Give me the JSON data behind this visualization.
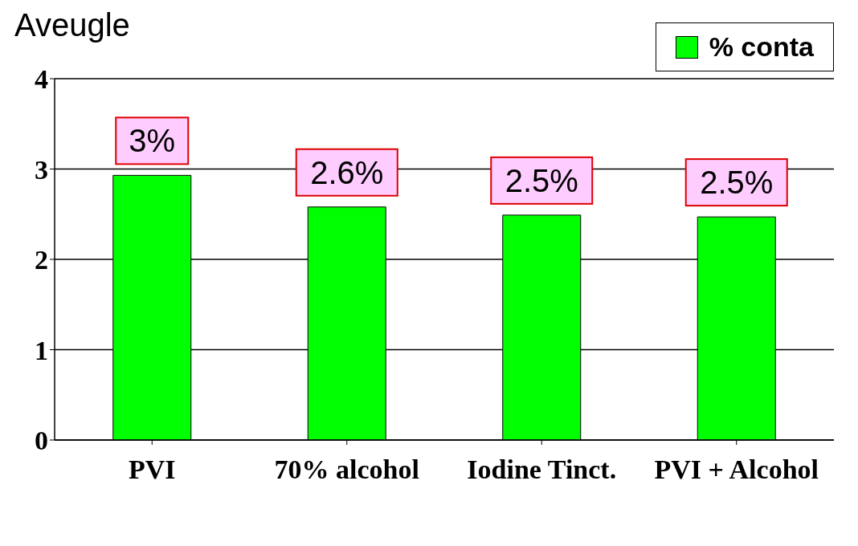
{
  "chart_data": {
    "type": "bar",
    "title": "Aveugle",
    "categories": [
      "PVI",
      "70% alcohol",
      "Iodine Tinct.",
      "PVI + Alcohol"
    ],
    "series": [
      {
        "name": "% conta",
        "color": "#00ff00",
        "values": [
          2.93,
          2.58,
          2.49,
          2.47
        ],
        "value_labels": [
          "3%",
          "2.6%",
          "2.5%",
          "2.5%"
        ]
      }
    ],
    "ylim": [
      0,
      4
    ],
    "yticks": [
      0,
      1,
      2,
      3,
      4
    ],
    "grid": "y",
    "legend": "top right"
  }
}
